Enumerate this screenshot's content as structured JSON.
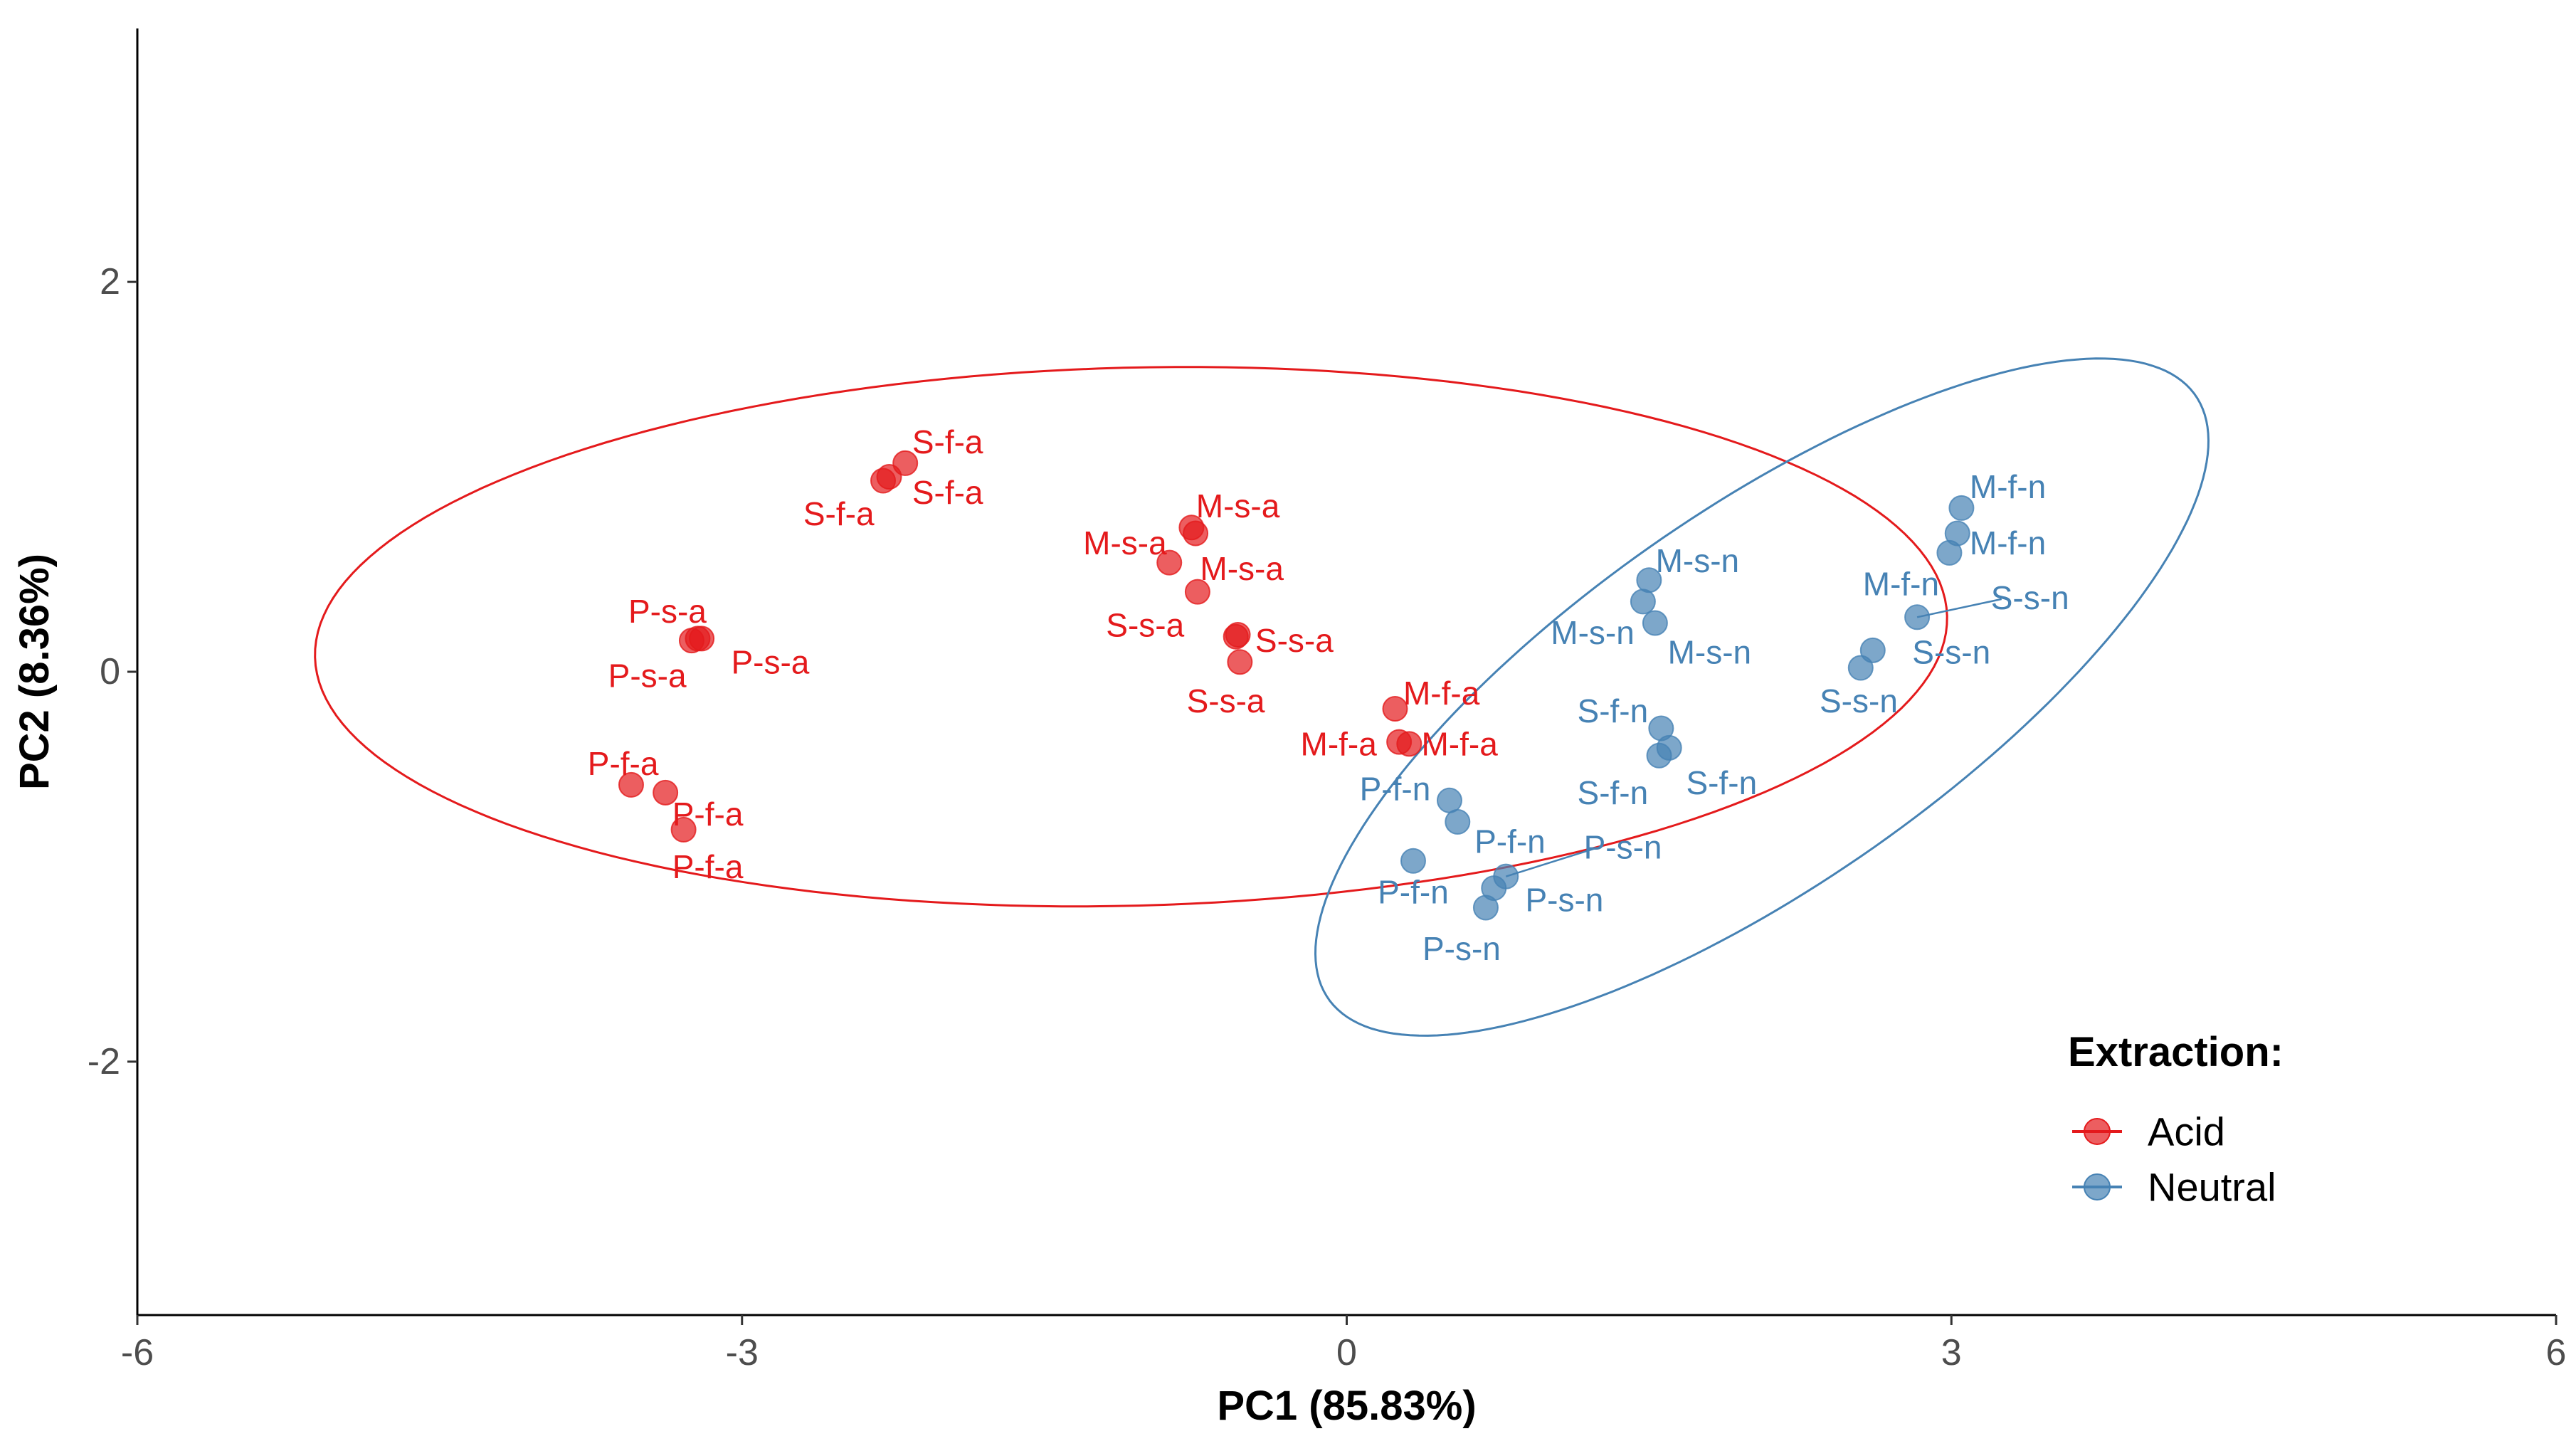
{
  "chart_data": {
    "type": "scatter",
    "title": "",
    "xlabel": "PC1 (85.83%)",
    "ylabel": "PC2 (8.36%)",
    "xlim": [
      -6,
      6
    ],
    "ylim": [
      -3.3,
      3.3
    ],
    "xticks": [
      -6,
      -3,
      0,
      3,
      6
    ],
    "yticks": [
      -2,
      0,
      2
    ],
    "xtick_labels": [
      "-6",
      "-3",
      "0",
      "3",
      "6"
    ],
    "ytick_labels": [
      "-2",
      "0",
      "2"
    ],
    "grid": false,
    "legend": {
      "title": "Extraction:",
      "position": "bottom-right",
      "entries": [
        "Acid",
        "Neutral"
      ]
    },
    "series": [
      {
        "name": "Acid",
        "color": "#E41A1C",
        "points": [
          {
            "label": "S-f-a",
            "x": -2.3,
            "y": 0.98
          },
          {
            "label": "S-f-a",
            "x": -2.27,
            "y": 1.0
          },
          {
            "label": "S-f-a",
            "x": -2.19,
            "y": 1.07
          },
          {
            "label": "M-s-a",
            "x": -0.77,
            "y": 0.74
          },
          {
            "label": "M-s-a",
            "x": -0.75,
            "y": 0.71
          },
          {
            "label": "M-s-a",
            "x": -0.88,
            "y": 0.56
          },
          {
            "label": "M-s-a",
            "x": -0.74,
            "y": 0.41
          },
          {
            "label": "P-s-a",
            "x": -3.25,
            "y": 0.16
          },
          {
            "label": "P-s-a",
            "x": -3.22,
            "y": 0.17
          },
          {
            "label": "P-s-a",
            "x": -3.2,
            "y": 0.17
          },
          {
            "label": "S-s-a",
            "x": -0.54,
            "y": 0.19
          },
          {
            "label": "S-s-a",
            "x": -0.53,
            "y": 0.05
          },
          {
            "label": "S-s-a",
            "x": -0.55,
            "y": 0.18
          },
          {
            "label": "M-f-a",
            "x": 0.24,
            "y": -0.19
          },
          {
            "label": "M-f-a",
            "x": 0.26,
            "y": -0.36
          },
          {
            "label": "M-f-a",
            "x": 0.31,
            "y": -0.37
          },
          {
            "label": "P-f-a",
            "x": -3.55,
            "y": -0.58
          },
          {
            "label": "P-f-a",
            "x": -3.38,
            "y": -0.62
          },
          {
            "label": "P-f-a",
            "x": -3.29,
            "y": -0.81
          }
        ],
        "ellipse": {
          "cx": -1.07,
          "cy": 0.18,
          "rx": 4.05,
          "ry": 1.38,
          "rotation_deg": 1.5
        }
      },
      {
        "name": "Neutral",
        "color": "#4682B4",
        "points": [
          {
            "label": "M-f-n",
            "x": 3.05,
            "y": 0.84
          },
          {
            "label": "M-f-n",
            "x": 3.03,
            "y": 0.71
          },
          {
            "label": "M-f-n",
            "x": 2.99,
            "y": 0.61
          },
          {
            "label": "M-s-n",
            "x": 1.5,
            "y": 0.47
          },
          {
            "label": "M-s-n",
            "x": 1.47,
            "y": 0.36
          },
          {
            "label": "M-s-n",
            "x": 1.53,
            "y": 0.25
          },
          {
            "label": "S-s-n",
            "x": 2.83,
            "y": 0.28
          },
          {
            "label": "S-s-n",
            "x": 2.61,
            "y": 0.11
          },
          {
            "label": "S-s-n",
            "x": 2.55,
            "y": 0.02
          },
          {
            "label": "S-f-n",
            "x": 1.56,
            "y": -0.29
          },
          {
            "label": "S-f-n",
            "x": 1.6,
            "y": -0.39
          },
          {
            "label": "S-f-n",
            "x": 1.55,
            "y": -0.43
          },
          {
            "label": "P-f-n",
            "x": 0.51,
            "y": -0.66
          },
          {
            "label": "P-f-n",
            "x": 0.55,
            "y": -0.77
          },
          {
            "label": "P-f-n",
            "x": 0.33,
            "y": -0.97
          },
          {
            "label": "P-s-n",
            "x": 0.79,
            "y": -1.05
          },
          {
            "label": "P-s-n",
            "x": 0.73,
            "y": -1.11
          },
          {
            "label": "P-s-n",
            "x": 0.69,
            "y": -1.21
          }
        ],
        "ellipse": {
          "cx": 2.06,
          "cy": -0.13,
          "rx": 2.65,
          "ry": 0.95,
          "rotation_deg": 36
        }
      }
    ],
    "annotations": [
      {
        "series": "Acid",
        "text": "S-f-a",
        "x": -1.98,
        "y": 1.18,
        "point": null
      },
      {
        "series": "Acid",
        "text": "S-f-a",
        "x": -1.98,
        "y": 0.92,
        "point": null
      },
      {
        "series": "Acid",
        "text": "S-f-a",
        "x": -2.52,
        "y": 0.81,
        "point": null
      },
      {
        "series": "Acid",
        "text": "M-s-a",
        "x": -0.54,
        "y": 0.85,
        "point": null
      },
      {
        "series": "Acid",
        "text": "M-s-a",
        "x": -1.1,
        "y": 0.66,
        "point": null
      },
      {
        "series": "Acid",
        "text": "M-s-a",
        "x": -0.52,
        "y": 0.53,
        "point": null
      },
      {
        "series": "Acid",
        "text": "S-s-a",
        "x": -1.0,
        "y": 0.24,
        "point": null
      },
      {
        "series": "Acid",
        "text": "P-s-a",
        "x": -3.37,
        "y": 0.31,
        "point": null
      },
      {
        "series": "Acid",
        "text": "P-s-a",
        "x": -2.86,
        "y": 0.05,
        "point": null
      },
      {
        "series": "Acid",
        "text": "P-s-a",
        "x": -3.47,
        "y": -0.02,
        "point": null
      },
      {
        "series": "Acid",
        "text": "S-s-a",
        "x": -0.26,
        "y": 0.16,
        "point": null
      },
      {
        "series": "Acid",
        "text": "S-s-a",
        "x": -0.6,
        "y": -0.15,
        "point": null
      },
      {
        "series": "Acid",
        "text": "M-f-a",
        "x": 0.47,
        "y": -0.11,
        "point": null
      },
      {
        "series": "Acid",
        "text": "M-f-a",
        "x": -0.04,
        "y": -0.37,
        "point": null
      },
      {
        "series": "Acid",
        "text": "M-f-a",
        "x": 0.56,
        "y": -0.37,
        "point": null
      },
      {
        "series": "Acid",
        "text": "P-f-a",
        "x": -3.59,
        "y": -0.47,
        "point": null
      },
      {
        "series": "Acid",
        "text": "P-f-a",
        "x": -3.17,
        "y": -0.73,
        "point": null
      },
      {
        "series": "Acid",
        "text": "P-f-a",
        "x": -3.17,
        "y": -1.0,
        "point": null
      },
      {
        "series": "Neutral",
        "text": "M-f-n",
        "x": 3.28,
        "y": 0.95,
        "point": null
      },
      {
        "series": "Neutral",
        "text": "M-f-n",
        "x": 3.28,
        "y": 0.66,
        "point": null
      },
      {
        "series": "Neutral",
        "text": "M-f-n",
        "x": 2.75,
        "y": 0.45,
        "point": null
      },
      {
        "series": "Neutral",
        "text": "S-s-n",
        "x": 3.39,
        "y": 0.38,
        "point": [
          2.83,
          0.28
        ]
      },
      {
        "series": "Neutral",
        "text": "S-s-n",
        "x": 3.0,
        "y": 0.1,
        "point": null
      },
      {
        "series": "Neutral",
        "text": "S-s-n",
        "x": 2.54,
        "y": -0.15,
        "point": null
      },
      {
        "series": "Neutral",
        "text": "M-s-n",
        "x": 1.74,
        "y": 0.57,
        "point": null
      },
      {
        "series": "Neutral",
        "text": "M-s-n",
        "x": 1.22,
        "y": 0.2,
        "point": null
      },
      {
        "series": "Neutral",
        "text": "M-s-n",
        "x": 1.8,
        "y": 0.1,
        "point": null
      },
      {
        "series": "Neutral",
        "text": "S-f-n",
        "x": 1.32,
        "y": -0.2,
        "point": null
      },
      {
        "series": "Neutral",
        "text": "S-f-n",
        "x": 1.32,
        "y": -0.62,
        "point": null
      },
      {
        "series": "Neutral",
        "text": "S-f-n",
        "x": 1.86,
        "y": -0.57,
        "point": null
      },
      {
        "series": "Neutral",
        "text": "P-f-n",
        "x": 0.24,
        "y": -0.6,
        "point": null
      },
      {
        "series": "Neutral",
        "text": "P-f-n",
        "x": 0.81,
        "y": -0.87,
        "point": null
      },
      {
        "series": "Neutral",
        "text": "P-f-n",
        "x": 0.33,
        "y": -1.13,
        "point": null
      },
      {
        "series": "Neutral",
        "text": "P-s-n",
        "x": 1.37,
        "y": -0.9,
        "point": [
          0.79,
          -1.05
        ]
      },
      {
        "series": "Neutral",
        "text": "P-s-n",
        "x": 1.08,
        "y": -1.17,
        "point": null
      },
      {
        "series": "Neutral",
        "text": "P-s-n",
        "x": 0.57,
        "y": -1.42,
        "point": null
      }
    ]
  }
}
